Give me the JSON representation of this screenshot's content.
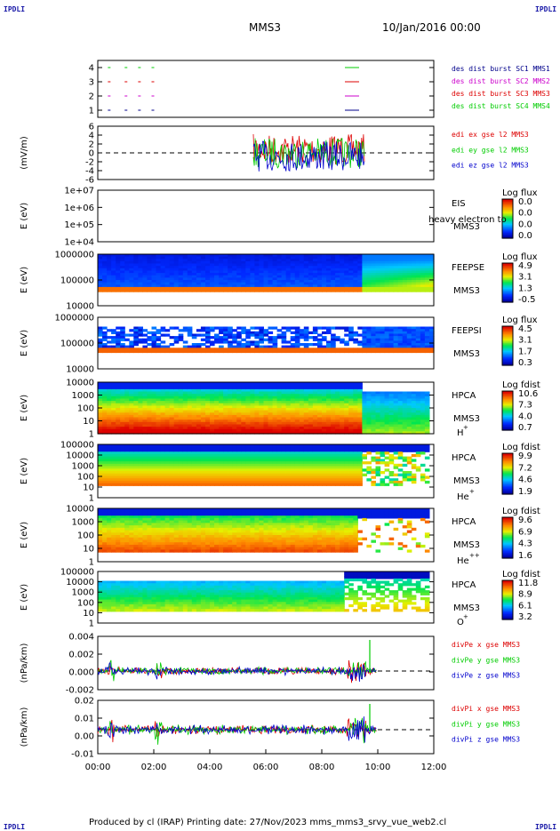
{
  "corners": {
    "tl": "IPDLI",
    "tr": "IPDLI",
    "bl": "IPDLI",
    "br": "IPDLI"
  },
  "header": {
    "spacecraft": "MMS3",
    "date": "10/Jan/2016 00:00"
  },
  "footer": {
    "text": "Produced by cl (IRAP)   Printing date: 27/Nov/2023   mms_mms3_srvy_vue_web2.cl"
  },
  "chart_data": [
    {
      "id": "p1",
      "type": "line",
      "ylabel": "",
      "yticks": [
        "4",
        "3",
        "2",
        "1"
      ],
      "series": [
        {
          "name": "des dist burst SC1 MMS1",
          "color": "#00008b"
        },
        {
          "name": "des dist burst SC2 MMS2",
          "color": "#cc00cc"
        },
        {
          "name": "des dist burst SC3 MMS3",
          "color": "#dd0000"
        },
        {
          "name": "des dist burst SC4 MMS4",
          "color": "#00cc00"
        }
      ]
    },
    {
      "id": "p2",
      "type": "line",
      "ylabel": "(mV/m)",
      "yticks": [
        "6",
        "4",
        "2",
        "0",
        "-2",
        "-4",
        "-6"
      ],
      "series": [
        {
          "name": "edi ex gse l2 MMS3",
          "color": "#dd0000"
        },
        {
          "name": "edi ey gse l2 MMS3",
          "color": "#00cc00"
        },
        {
          "name": "edi ez gse l2 MMS3",
          "color": "#0000cc"
        }
      ]
    },
    {
      "id": "p3",
      "type": "heatmap",
      "ylabel": "E (eV)",
      "yticks": [
        "1e+07",
        "1e+06",
        "1e+05",
        "1e+04"
      ],
      "instrument": "EIS",
      "note": "heavy electron to",
      "sc": "MMS3",
      "cbar_title": "Log flux",
      "cbar_ticks": [
        "0.0",
        "0.0",
        "0.0",
        "0.0"
      ]
    },
    {
      "id": "p4",
      "type": "heatmap",
      "ylabel": "E (eV)",
      "yticks": [
        "1000000",
        "100000",
        "10000"
      ],
      "instrument": "FEEPSE",
      "sc": "MMS3",
      "cbar_title": "Log flux",
      "cbar_ticks": [
        "4.9",
        "3.1",
        "1.3",
        "-0.5"
      ]
    },
    {
      "id": "p5",
      "type": "heatmap",
      "ylabel": "E (eV)",
      "yticks": [
        "1000000",
        "100000",
        "10000"
      ],
      "instrument": "FEEPSI",
      "sc": "MMS3",
      "cbar_title": "Log flux",
      "cbar_ticks": [
        "4.5",
        "3.1",
        "1.7",
        "0.3"
      ]
    },
    {
      "id": "p6",
      "type": "heatmap",
      "ylabel": "E (eV)",
      "yticks": [
        "10000",
        "1000",
        "100",
        "10",
        "1"
      ],
      "instrument": "HPCA",
      "sc": "MMS3",
      "species": "H",
      "charge": "+",
      "cbar_title": "Log fdist",
      "cbar_ticks": [
        "10.6",
        "7.3",
        "4.0",
        "0.7"
      ]
    },
    {
      "id": "p7",
      "type": "heatmap",
      "ylabel": "E (eV)",
      "yticks": [
        "100000",
        "10000",
        "1000",
        "100",
        "10",
        "1"
      ],
      "instrument": "HPCA",
      "sc": "MMS3",
      "species": "He",
      "charge": "+",
      "cbar_title": "Log fdist",
      "cbar_ticks": [
        "9.9",
        "7.2",
        "4.6",
        "1.9"
      ]
    },
    {
      "id": "p8",
      "type": "heatmap",
      "ylabel": "E (eV)",
      "yticks": [
        "10000",
        "1000",
        "100",
        "10",
        "1"
      ],
      "instrument": "HPCA",
      "sc": "MMS3",
      "species": "He",
      "charge": "++",
      "cbar_title": "Log fdist",
      "cbar_ticks": [
        "9.6",
        "6.9",
        "4.3",
        "1.6"
      ]
    },
    {
      "id": "p9",
      "type": "heatmap",
      "ylabel": "E (eV)",
      "yticks": [
        "100000",
        "10000",
        "1000",
        "100",
        "10",
        "1"
      ],
      "instrument": "HPCA",
      "sc": "MMS3",
      "species": "O",
      "charge": "+",
      "cbar_title": "Log fdist",
      "cbar_ticks": [
        "11.8",
        "8.9",
        "6.1",
        "3.2"
      ]
    },
    {
      "id": "p10",
      "type": "line",
      "ylabel": "(nPa/km)",
      "yticks": [
        "0.004",
        "0.002",
        "0.000",
        "-0.002"
      ],
      "series": [
        {
          "name": "divPe x gse MMS3",
          "color": "#dd0000"
        },
        {
          "name": "divPe y gse MMS3",
          "color": "#00cc00"
        },
        {
          "name": "divPe z gse MMS3",
          "color": "#0000cc"
        }
      ]
    },
    {
      "id": "p11",
      "type": "line",
      "ylabel": "(nPa/km)",
      "yticks": [
        "0.02",
        "0.01",
        "0.00",
        "-0.01"
      ],
      "series": [
        {
          "name": "divPi x gse MMS3",
          "color": "#dd0000"
        },
        {
          "name": "divPi y gse MMS3",
          "color": "#00cc00"
        },
        {
          "name": "divPi z gse MMS3",
          "color": "#0000cc"
        }
      ]
    }
  ],
  "x_axis": {
    "ticks": [
      "00:00",
      "02:00",
      "04:00",
      "06:00",
      "08:00",
      "10:00",
      "12:00"
    ],
    "range_hours": [
      0,
      12
    ]
  }
}
